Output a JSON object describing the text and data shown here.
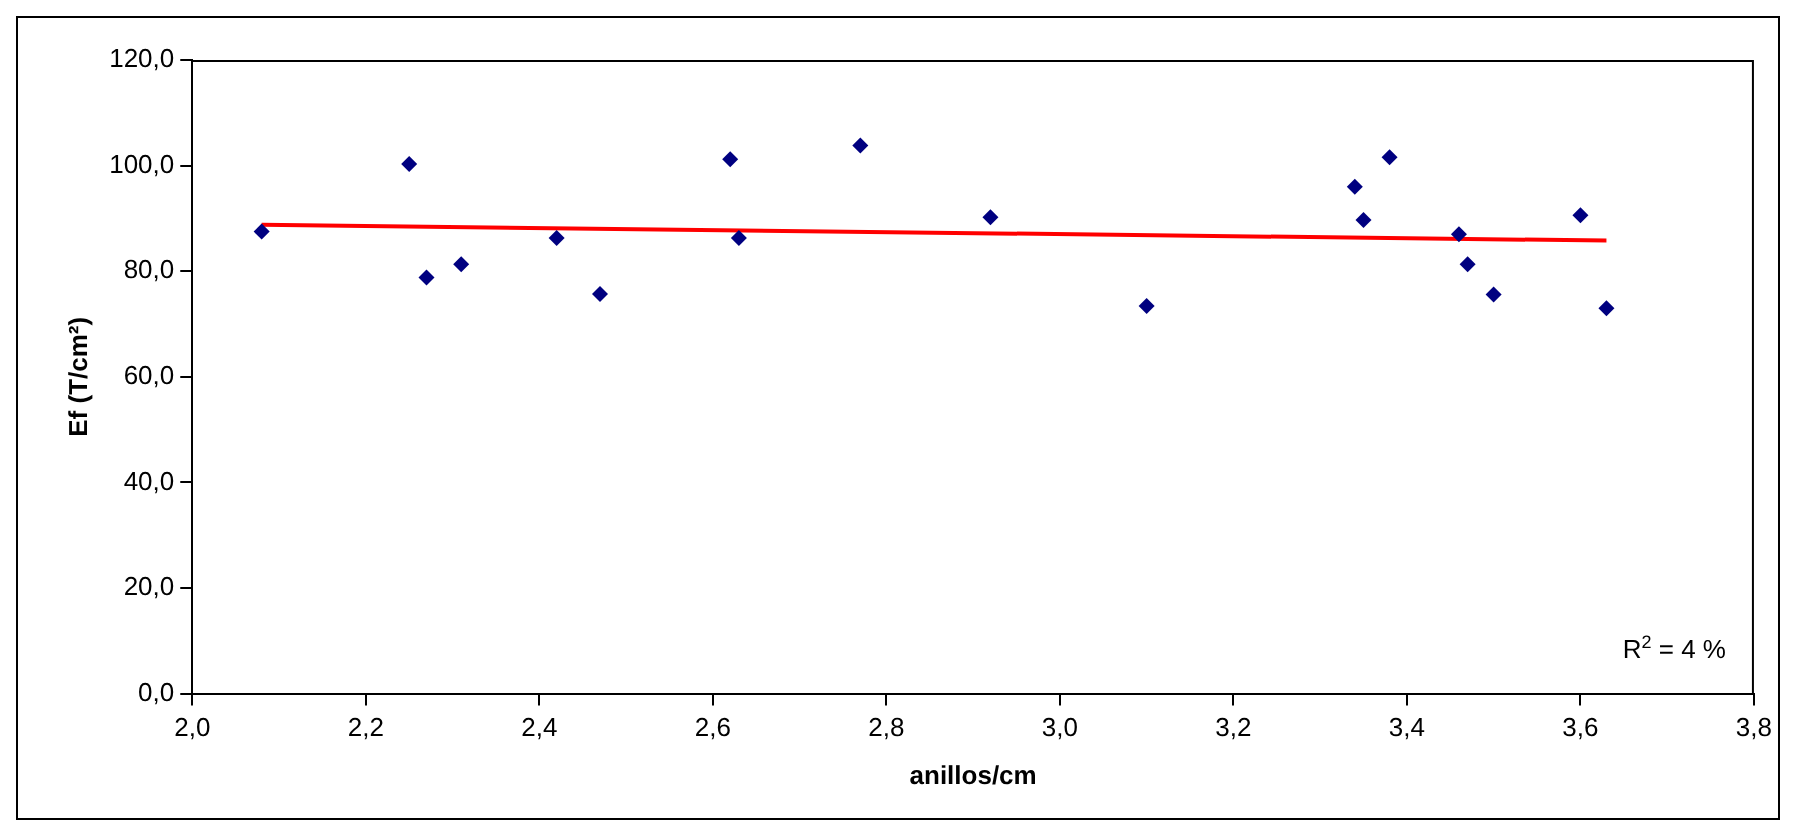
{
  "chart_data": {
    "type": "scatter",
    "xlabel": "anillos/cm",
    "ylabel": "Ef (T/cm²)",
    "annotations": [
      "R$^{2}$ = 4 %"
    ],
    "xlim": [
      2.0,
      3.8
    ],
    "xticks": [
      {
        "value": 2.0,
        "label": "2,0"
      },
      {
        "value": 2.2,
        "label": "2,2"
      },
      {
        "value": 2.4,
        "label": "2,4"
      },
      {
        "value": 2.6,
        "label": "2,6"
      },
      {
        "value": 2.8,
        "label": "2,8"
      },
      {
        "value": 3.0,
        "label": "3,0"
      },
      {
        "value": 3.2,
        "label": "3,2"
      },
      {
        "value": 3.4,
        "label": "3,4"
      },
      {
        "value": 3.6,
        "label": "3,6"
      },
      {
        "value": 3.8,
        "label": "3,8"
      }
    ],
    "ylim": [
      0,
      120
    ],
    "yticks": [
      {
        "value": 0,
        "label": "0,0"
      },
      {
        "value": 20,
        "label": "20,0"
      },
      {
        "value": 40,
        "label": "40,0"
      },
      {
        "value": 60,
        "label": "60,0"
      },
      {
        "value": 80,
        "label": "80,0"
      },
      {
        "value": 100,
        "label": "100,0"
      },
      {
        "value": 120,
        "label": "120,0"
      }
    ],
    "grid": false,
    "legend": false,
    "series": [
      {
        "marker": "diamond",
        "color": "#000080",
        "x": [
          2.08,
          2.25,
          2.27,
          2.31,
          2.42,
          2.47,
          2.62,
          2.63,
          2.77,
          2.92,
          3.1,
          3.34,
          3.35,
          3.38,
          3.46,
          3.47,
          3.5,
          3.6,
          3.63
        ],
        "values": [
          87.5,
          100.3,
          78.8,
          81.3,
          86.3,
          75.7,
          101.2,
          86.3,
          103.8,
          90.2,
          73.4,
          96.0,
          89.7,
          101.6,
          87.0,
          81.3,
          75.6,
          90.6,
          73.0
        ]
      },
      {
        "type": "line",
        "color": "#ff0000",
        "x": [
          2.08,
          3.63
        ],
        "values": [
          88.8,
          85.8
        ]
      }
    ]
  }
}
